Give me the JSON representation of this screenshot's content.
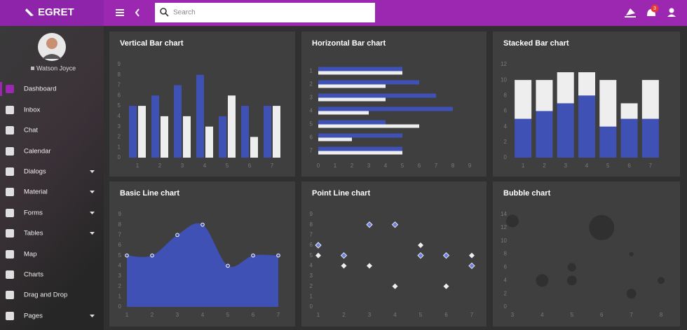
{
  "header": {
    "logo": "EGRET",
    "search_placeholder": "Search",
    "notification_count": 3
  },
  "sidebar": {
    "user": "Watson Joyce",
    "items": [
      "Dashboard",
      "Inbox",
      "Chat",
      "Calendar",
      "Dialogs",
      "Material",
      "Forms",
      "Tables",
      "Map",
      "Charts",
      "Drag and Drop",
      "Pages"
    ]
  },
  "chart_data": [
    {
      "type": "bar",
      "title": "Vertical Bar chart",
      "categories": [
        "1",
        "2",
        "3",
        "4",
        "5",
        "6",
        "7"
      ],
      "series": [
        {
          "color": "#3f51b5",
          "values": [
            5,
            6,
            7,
            8,
            4,
            5,
            5
          ]
        },
        {
          "color": "#eeeeee",
          "values": [
            5,
            4,
            4,
            3,
            6,
            2,
            5
          ]
        }
      ],
      "ylim": [
        0,
        9
      ],
      "yticks": [
        0,
        1,
        2,
        3,
        4,
        5,
        6,
        7,
        8,
        9
      ]
    },
    {
      "type": "barh",
      "title": "Horizontal Bar chart",
      "categories": [
        "1",
        "2",
        "3",
        "4",
        "5",
        "6",
        "7"
      ],
      "series": [
        {
          "color": "#3f51b5",
          "values": [
            5,
            6,
            7,
            8,
            4,
            5,
            5
          ]
        },
        {
          "color": "#eeeeee",
          "values": [
            5,
            4,
            4,
            3,
            6,
            2,
            5
          ]
        }
      ],
      "xlim": [
        0,
        9
      ],
      "xticks": [
        0,
        1,
        2,
        3,
        4,
        5,
        6,
        7,
        8,
        9
      ]
    },
    {
      "type": "stacked_bar",
      "title": "Stacked Bar chart",
      "categories": [
        "1",
        "2",
        "3",
        "4",
        "5",
        "6",
        "7"
      ],
      "series": [
        {
          "color": "#3f51b5",
          "values": [
            5,
            6,
            7,
            8,
            4,
            5,
            5
          ]
        },
        {
          "color": "#eeeeee",
          "values": [
            5,
            4,
            4,
            3,
            6,
            2,
            5
          ]
        }
      ],
      "ylim": [
        0,
        12
      ],
      "yticks": [
        0,
        2,
        4,
        6,
        8,
        10,
        12
      ]
    },
    {
      "type": "area",
      "title": "Basic Line chart",
      "color": "#3f51b5",
      "x": [
        1,
        2,
        3,
        4,
        5,
        6,
        7
      ],
      "values": [
        5,
        5,
        7,
        8,
        4,
        5,
        5
      ],
      "xlim": [
        1,
        7
      ],
      "xticks": [
        1,
        2,
        3,
        4,
        5,
        6,
        7
      ],
      "ylim": [
        0,
        9
      ],
      "yticks": [
        0,
        1,
        2,
        3,
        4,
        5,
        6,
        7,
        8,
        9
      ]
    },
    {
      "type": "scatter",
      "title": "Point Line chart",
      "marker": "diamond",
      "x": [
        1,
        2,
        3,
        4,
        5,
        6,
        7
      ],
      "series": [
        {
          "color": "#3f51b5",
          "values": [
            6,
            5,
            8,
            8,
            5,
            5,
            4
          ]
        },
        {
          "color": "#eeeeee",
          "values": [
            5,
            4,
            4,
            2,
            6,
            2,
            5
          ]
        }
      ],
      "xlim": [
        1,
        7
      ],
      "xticks": [
        1,
        2,
        3,
        4,
        5,
        6,
        7
      ],
      "ylim": [
        0,
        9
      ],
      "yticks": [
        0,
        1,
        2,
        3,
        4,
        5,
        6,
        7,
        8,
        9
      ]
    },
    {
      "type": "bubble",
      "title": "Bubble chart",
      "series": [
        {
          "color": "#2e2e2e",
          "x": [
            3,
            4,
            5,
            5,
            6,
            7,
            7,
            8
          ],
          "values": [
            13,
            4,
            6,
            4,
            12,
            8,
            2,
            4
          ],
          "sizes": [
            9,
            9,
            6,
            7,
            18,
            3,
            7,
            5
          ]
        }
      ],
      "xlim": [
        3,
        8
      ],
      "xticks": [
        3,
        4,
        5,
        6,
        7,
        8
      ],
      "ylim": [
        0,
        14
      ],
      "yticks": [
        0,
        2,
        4,
        6,
        8,
        10,
        12,
        14
      ]
    }
  ]
}
